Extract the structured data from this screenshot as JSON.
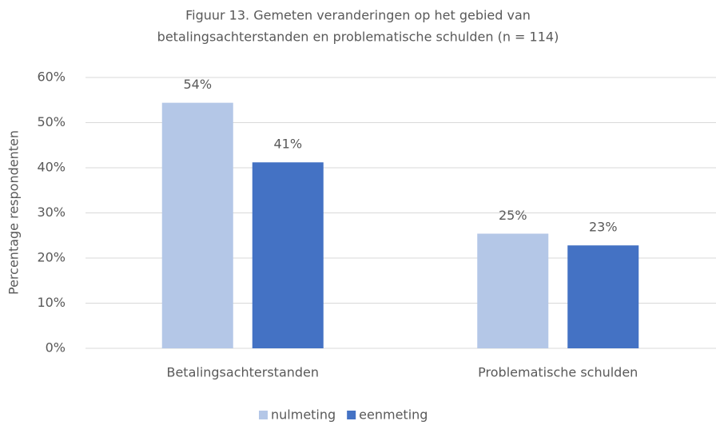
{
  "chart_data": {
    "type": "bar",
    "title": [
      "Figuur 13. Gemeten veranderingen op het gebied van",
      "betalingsachterstanden en problematische schulden (n = 114)"
    ],
    "y_label": "Percentage respondenten",
    "categories": [
      "Betalingsachterstanden",
      "Problematische schulden"
    ],
    "series": [
      {
        "name": "nulmeting",
        "color": "#b4c7e7",
        "values": [
          54.4,
          25.4
        ],
        "value_labels": [
          "54%",
          "25%"
        ]
      },
      {
        "name": "eenmeting",
        "color": "#4472c4",
        "values": [
          41.2,
          22.8
        ],
        "value_labels": [
          "41%",
          "23%"
        ]
      }
    ],
    "ylim": [
      0,
      60
    ],
    "yticks": [
      {
        "value": 0,
        "label": "0%"
      },
      {
        "value": 10,
        "label": "10%"
      },
      {
        "value": 20,
        "label": "20%"
      },
      {
        "value": 30,
        "label": "30%"
      },
      {
        "value": 40,
        "label": "40%"
      },
      {
        "value": 50,
        "label": "50%"
      },
      {
        "value": 60,
        "label": "60%"
      }
    ],
    "grid": true,
    "legend": "bottom"
  }
}
